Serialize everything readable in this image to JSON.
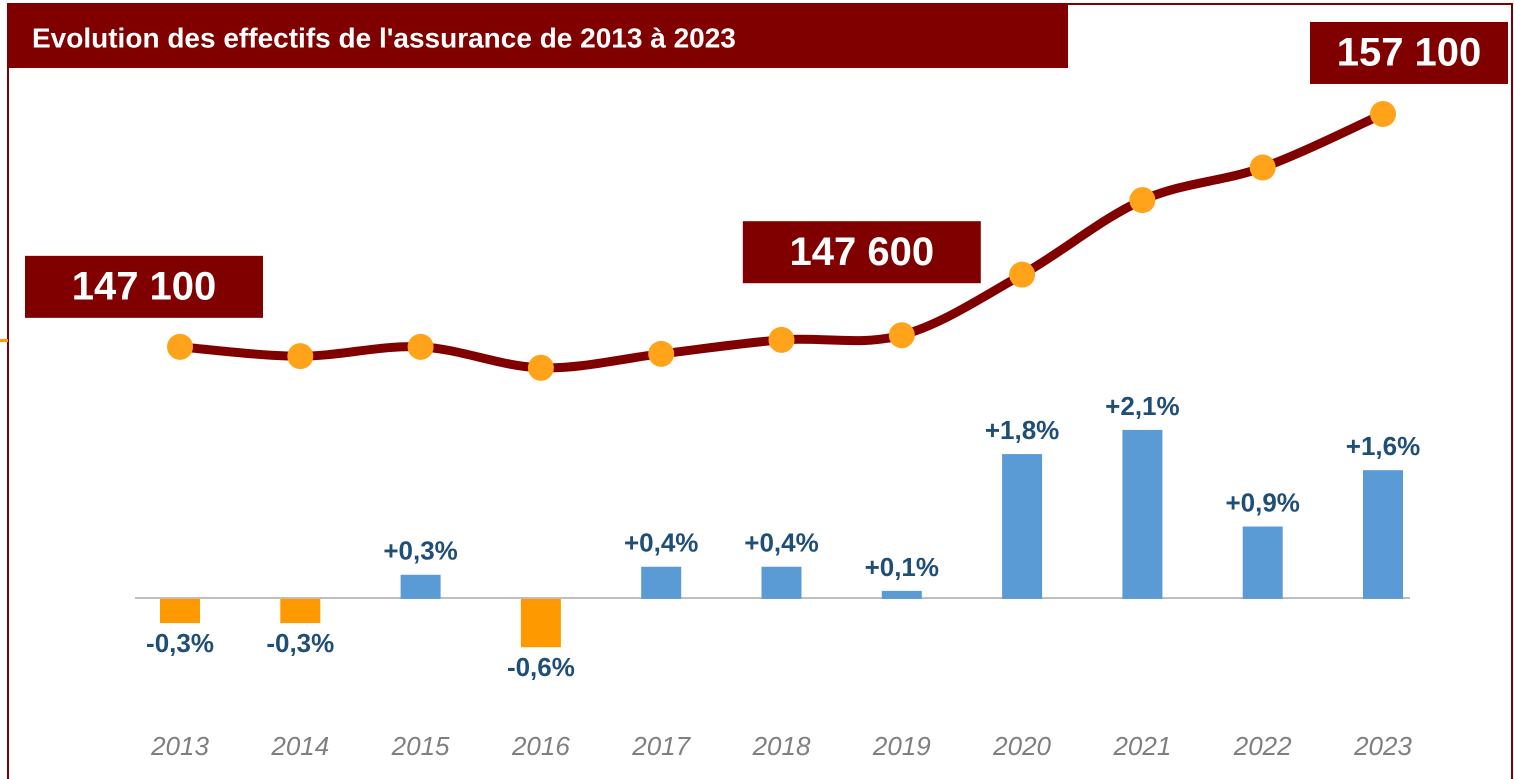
{
  "chart_data": {
    "type": "line_bar",
    "title": "Evolution des effectifs de l'assurance de 2013 à 2023",
    "categories": [
      "2013",
      "2014",
      "2015",
      "2016",
      "2017",
      "2018",
      "2019",
      "2020",
      "2021",
      "2022",
      "2023"
    ],
    "series": [
      {
        "name": "Effectifs",
        "type": "line",
        "color": "#800000",
        "marker_color": "#ffa31a",
        "values": [
          147100,
          146700,
          147100,
          146200,
          146800,
          147400,
          147600,
          150200,
          153400,
          154800,
          157100
        ],
        "value_labels": [
          "147 100",
          null,
          null,
          null,
          null,
          null,
          "147 600",
          null,
          null,
          null,
          "157 100"
        ]
      },
      {
        "name": "Evolution",
        "type": "bar",
        "axis": "y2",
        "color": "#5b9bd5",
        "negative_color": "#ff9900",
        "values": [
          -0.3,
          -0.3,
          0.3,
          -0.6,
          0.4,
          0.4,
          0.1,
          1.8,
          2.1,
          0.9,
          1.6
        ],
        "value_labels": [
          "-0,3%",
          "-0,3%",
          "+0,3%",
          "-0,6%",
          "+0,4%",
          "+0,4%",
          "+0,1%",
          "+1,8%",
          "+2,1%",
          "+0,9%",
          "+1,6%"
        ]
      }
    ],
    "ylim": [
      128500,
      157700
    ],
    "y2lim": [
      -2.25,
      6.2
    ]
  }
}
